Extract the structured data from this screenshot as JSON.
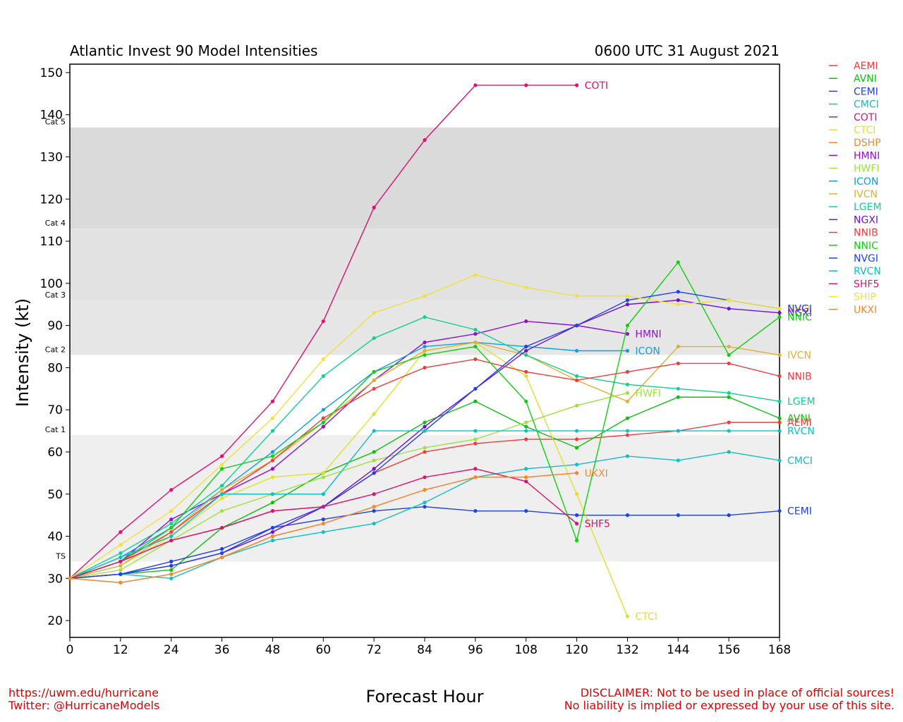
{
  "footer": {
    "url": "https://uwm.edu/hurricane",
    "twitter": "Twitter: @HurricaneModels",
    "disclaimer1": "DISCLAIMER: Not to be used in place of official sources!",
    "disclaimer2": "No liability is implied or expressed by your use of this site."
  },
  "chart_data": {
    "type": "line",
    "title": "Atlantic Invest 90 Model Intensities",
    "subtitle": "0600 UTC 31 August 2021",
    "xlabel": "Forecast Hour",
    "ylabel": "Intensity (kt)",
    "xlim": [
      0,
      168
    ],
    "ylim": [
      16,
      152
    ],
    "xticks": [
      0,
      12,
      24,
      36,
      48,
      60,
      72,
      84,
      96,
      108,
      120,
      132,
      144,
      156,
      168
    ],
    "yticks": [
      20,
      30,
      40,
      50,
      60,
      70,
      80,
      90,
      100,
      110,
      120,
      130,
      140,
      150
    ],
    "categories_bands": [
      {
        "label": "TS",
        "from": 34,
        "to": 64,
        "color": "#efefef"
      },
      {
        "label": "Cat 1",
        "from": 64,
        "to": 83,
        "color": "#ffffff"
      },
      {
        "label": "Cat 2",
        "from": 83,
        "to": 96,
        "color": "#e6e6e6"
      },
      {
        "label": "Cat 3",
        "from": 96,
        "to": 113,
        "color": "#e2e2e2"
      },
      {
        "label": "Cat 4",
        "from": 113,
        "to": 137,
        "color": "#dadada"
      },
      {
        "label": "Cat 5",
        "from": 137,
        "to": 152,
        "color": "#ffffff"
      }
    ],
    "legend_position": "right-outside",
    "series": [
      {
        "name": "AEMI",
        "color": "#f03c3c",
        "x": [
          0,
          12,
          24,
          36,
          48,
          60,
          72,
          84,
          96,
          108,
          120,
          132,
          144,
          156,
          168
        ],
        "values": [
          30,
          34,
          39,
          42,
          46,
          47,
          55,
          60,
          62,
          63,
          63,
          64,
          65,
          67,
          67
        ]
      },
      {
        "name": "AVNI",
        "color": "#10c010",
        "x": [
          0,
          12,
          24,
          36,
          48,
          60,
          72,
          84,
          96,
          108,
          120,
          132,
          144,
          156,
          168
        ],
        "values": [
          30,
          31,
          32,
          42,
          48,
          55,
          60,
          67,
          72,
          66,
          61,
          68,
          73,
          73,
          68
        ]
      },
      {
        "name": "CEMI",
        "color": "#2040e0",
        "x": [
          0,
          12,
          24,
          36,
          48,
          60,
          72,
          84,
          96,
          108,
          120,
          132,
          144,
          156,
          168
        ],
        "values": [
          30,
          31,
          34,
          37,
          42,
          44,
          46,
          47,
          46,
          46,
          45,
          45,
          45,
          45,
          46
        ]
      },
      {
        "name": "CMCI",
        "color": "#10c0c0",
        "x": [
          0,
          12,
          24,
          36,
          48,
          60,
          72,
          84,
          96,
          108,
          120,
          132,
          144,
          156,
          168
        ],
        "values": [
          30,
          31,
          30,
          35,
          39,
          41,
          43,
          48,
          54,
          56,
          57,
          59,
          58,
          60,
          58
        ]
      },
      {
        "name": "COTI",
        "color": "#e01070",
        "x": [
          0,
          12,
          24,
          36,
          48,
          60,
          72,
          84,
          96,
          108,
          120
        ],
        "values": [
          30,
          41,
          51,
          59,
          72,
          91,
          118,
          134,
          147,
          147,
          147
        ]
      },
      {
        "name": "CTCI",
        "color": "#e0e030",
        "x": [
          0,
          12,
          24,
          36,
          48,
          60,
          72,
          84,
          96,
          108,
          120,
          132
        ],
        "values": [
          30,
          33,
          40,
          49,
          54,
          55,
          69,
          84,
          86,
          78,
          50,
          21
        ]
      },
      {
        "name": "DSHP",
        "color": "#f08a30",
        "x": [
          0,
          12,
          24,
          36,
          48,
          60,
          72,
          84,
          96,
          108,
          120
        ],
        "values": [
          30,
          29,
          31,
          35,
          40,
          43,
          47,
          51,
          54,
          54,
          55
        ]
      },
      {
        "name": "HMNI",
        "color": "#9010d0",
        "x": [
          0,
          12,
          24,
          36,
          48,
          60,
          72,
          84,
          96,
          108,
          120,
          132
        ],
        "values": [
          30,
          34,
          44,
          50,
          56,
          66,
          77,
          86,
          88,
          91,
          90,
          88
        ]
      },
      {
        "name": "HWFI",
        "color": "#a0e040",
        "x": [
          0,
          12,
          24,
          36,
          48,
          60,
          72,
          84,
          96,
          108,
          120,
          132
        ],
        "values": [
          30,
          32,
          39,
          46,
          50,
          54,
          58,
          61,
          63,
          67,
          71,
          74
        ]
      },
      {
        "name": "ICON",
        "color": "#10a0e0",
        "x": [
          0,
          12,
          24,
          36,
          48,
          60,
          72,
          84,
          96,
          108,
          120,
          132
        ],
        "values": [
          30,
          35,
          42,
          51,
          60,
          70,
          79,
          85,
          86,
          85,
          84,
          84
        ]
      },
      {
        "name": "IVCN",
        "color": "#e0b030",
        "x": [
          0,
          12,
          24,
          36,
          48,
          60,
          72,
          84,
          96,
          108,
          120,
          132,
          144,
          156,
          168
        ],
        "values": [
          30,
          33,
          41,
          51,
          58,
          67,
          77,
          84,
          86,
          83,
          77,
          72,
          85,
          85,
          83
        ]
      },
      {
        "name": "LGEM",
        "color": "#10d090",
        "x": [
          0,
          12,
          24,
          36,
          48,
          60,
          72,
          84,
          96,
          108,
          120,
          132,
          144,
          156,
          168
        ],
        "values": [
          30,
          36,
          43,
          52,
          65,
          78,
          87,
          92,
          89,
          83,
          78,
          76,
          75,
          74,
          72
        ]
      },
      {
        "name": "NGXI",
        "color": "#7010d0",
        "x": [
          0,
          12,
          24,
          36,
          48,
          60,
          72,
          84,
          96,
          108,
          120,
          132,
          144,
          156,
          168
        ],
        "values": [
          30,
          31,
          33,
          36,
          41,
          47,
          56,
          66,
          75,
          84,
          90,
          95,
          96,
          94,
          93
        ]
      },
      {
        "name": "NNIB",
        "color": "#f03c3c",
        "x": [
          0,
          12,
          24,
          36,
          48,
          60,
          72,
          84,
          96,
          108,
          120,
          132,
          144,
          156,
          168
        ],
        "values": [
          30,
          34,
          41,
          50,
          58,
          68,
          75,
          80,
          82,
          79,
          77,
          79,
          81,
          81,
          78
        ]
      },
      {
        "name": "NNIC",
        "color": "#10d010",
        "x": [
          0,
          12,
          24,
          36,
          48,
          60,
          72,
          84,
          96,
          108,
          120,
          132,
          144,
          156,
          168
        ],
        "values": [
          30,
          34,
          42,
          56,
          59,
          67,
          79,
          83,
          85,
          72,
          39,
          90,
          105,
          83,
          92
        ]
      },
      {
        "name": "NVGI",
        "color": "#2040f0",
        "x": [
          0,
          12,
          24,
          36,
          48,
          60,
          72,
          84,
          96,
          108,
          120,
          132,
          144,
          156,
          168
        ],
        "values": [
          30,
          31,
          33,
          36,
          42,
          47,
          55,
          65,
          75,
          85,
          90,
          96,
          98,
          96,
          94
        ]
      },
      {
        "name": "RVCN",
        "color": "#10c0c0",
        "x": [
          0,
          12,
          24,
          36,
          48,
          60,
          72,
          84,
          96,
          108,
          120,
          132,
          144,
          156,
          168
        ],
        "values": [
          30,
          35,
          40,
          50,
          50,
          50,
          65,
          65,
          65,
          65,
          65,
          65,
          65,
          65,
          65
        ]
      },
      {
        "name": "SHF5",
        "color": "#e01070",
        "x": [
          0,
          12,
          24,
          36,
          48,
          60,
          72,
          84,
          96,
          108,
          120
        ],
        "values": [
          30,
          34,
          39,
          42,
          46,
          47,
          50,
          54,
          56,
          53,
          43
        ]
      },
      {
        "name": "SHIP",
        "color": "#f0e040",
        "x": [
          0,
          12,
          24,
          36,
          48,
          60,
          72,
          84,
          96,
          108,
          120,
          132,
          144,
          156,
          168
        ],
        "values": [
          30,
          38,
          46,
          57,
          68,
          82,
          93,
          97,
          102,
          99,
          97,
          97,
          95,
          96,
          94
        ]
      },
      {
        "name": "UKXI",
        "color": "#f08a30",
        "x": [
          0,
          12,
          24,
          36,
          48,
          60,
          72,
          84,
          96,
          108,
          120
        ],
        "values": [
          30,
          29,
          31,
          35,
          40,
          43,
          47,
          51,
          54,
          54,
          55
        ]
      }
    ],
    "end_labels": [
      {
        "name": "COTI",
        "x": 120,
        "y": 147
      },
      {
        "name": "HMNI",
        "x": 132,
        "y": 88
      },
      {
        "name": "ICON",
        "x": 132,
        "y": 84
      },
      {
        "name": "HWFI",
        "x": 132,
        "y": 74
      },
      {
        "name": "UKXI",
        "x": 120,
        "y": 55
      },
      {
        "name": "SHF5",
        "x": 120,
        "y": 43
      },
      {
        "name": "CTCI",
        "x": 132,
        "y": 21
      },
      {
        "name": "SHIP",
        "x": 168,
        "y": 94
      },
      {
        "name": "NVGI",
        "x": 168,
        "y": 94
      },
      {
        "name": "NGXI",
        "x": 168,
        "y": 93
      },
      {
        "name": "NNIC",
        "x": 168,
        "y": 92
      },
      {
        "name": "IVCN",
        "x": 168,
        "y": 83
      },
      {
        "name": "NNIB",
        "x": 168,
        "y": 78
      },
      {
        "name": "LGEM",
        "x": 168,
        "y": 72
      },
      {
        "name": "AVNI",
        "x": 168,
        "y": 68
      },
      {
        "name": "AEMI",
        "x": 168,
        "y": 67
      },
      {
        "name": "RVCN",
        "x": 168,
        "y": 65
      },
      {
        "name": "CMCI",
        "x": 168,
        "y": 58
      },
      {
        "name": "CEMI",
        "x": 168,
        "y": 46
      }
    ]
  }
}
